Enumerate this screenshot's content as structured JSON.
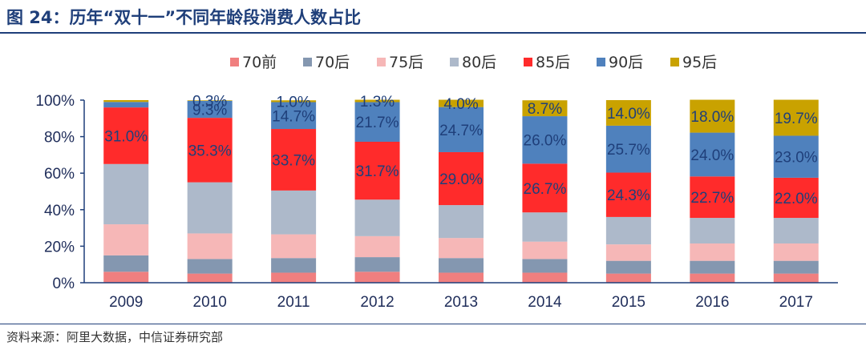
{
  "figure": {
    "title": "图 24：历年“双十一”不同年龄段消费人数占比",
    "source": "资料来源：阿里大数据，中信证券研究部"
  },
  "chart_data": {
    "type": "bar",
    "stacked": true,
    "categories": [
      "2009",
      "2010",
      "2011",
      "2012",
      "2013",
      "2014",
      "2015",
      "2016",
      "2017"
    ],
    "ylim": [
      0,
      100
    ],
    "yticks": [
      "0%",
      "20%",
      "40%",
      "60%",
      "80%",
      "100%"
    ],
    "legend_position": "top",
    "grid": false,
    "series": [
      {
        "name": "70前",
        "color": "#f07f7f",
        "values": [
          6,
          5,
          5.5,
          6,
          5.5,
          5.5,
          5,
          5,
          5
        ]
      },
      {
        "name": "70后",
        "color": "#8497b0",
        "values": [
          9,
          8,
          8,
          8,
          8,
          7.5,
          7,
          7,
          7
        ]
      },
      {
        "name": "75后",
        "color": "#f6b7b7",
        "values": [
          17,
          14,
          13,
          11.5,
          11,
          9.5,
          9,
          9.5,
          9.5
        ]
      },
      {
        "name": "80后",
        "color": "#adb9ca",
        "values": [
          33,
          28,
          24,
          20,
          18,
          16,
          15,
          14,
          14
        ]
      },
      {
        "name": "85后",
        "color": "#ff2b2b",
        "values": [
          31,
          35.3,
          33.7,
          31.7,
          29,
          26.7,
          24.3,
          22.7,
          22
        ]
      },
      {
        "name": "90后",
        "color": "#4f81bd",
        "values": [
          3,
          9.3,
          14.7,
          21.7,
          24.7,
          26,
          25.7,
          24,
          23
        ]
      },
      {
        "name": "95后",
        "color": "#c9a200",
        "values": [
          1,
          0.3,
          1,
          1.3,
          4,
          8.7,
          14,
          18,
          19.7
        ]
      }
    ],
    "data_labels": [
      {
        "series": "85后",
        "labels": [
          "31.0%",
          "35.3%",
          "33.7%",
          "31.7%",
          "29.0%",
          "26.7%",
          "24.3%",
          "22.7%",
          "22.0%"
        ]
      },
      {
        "series": "90后",
        "labels": [
          "",
          "9.3%",
          "14.7%",
          "21.7%",
          "24.7%",
          "26.0%",
          "25.7%",
          "24.0%",
          "23.0%"
        ]
      },
      {
        "series": "95后",
        "labels": [
          "",
          "0.3%",
          "1.0%",
          "1.3%",
          "4.0%",
          "8.7%",
          "14.0%",
          "18.0%",
          "19.7%"
        ]
      }
    ]
  }
}
